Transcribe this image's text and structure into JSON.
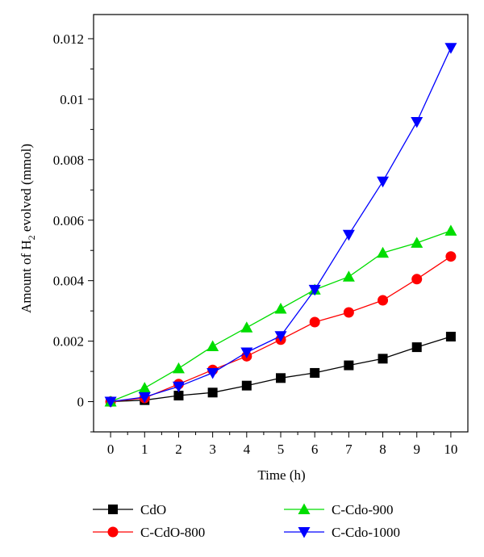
{
  "chart_data": {
    "type": "line",
    "xlabel": "Time (h)",
    "ylabel_prefix": "Amount of H",
    "ylabel_sub": "2",
    "ylabel_suffix": " evolved (mmol)",
    "xlim": [
      -0.5,
      10.5
    ],
    "ylim": [
      -0.001,
      0.0128
    ],
    "x": [
      0,
      1,
      2,
      3,
      4,
      5,
      6,
      7,
      8,
      9,
      10
    ],
    "xticks": [
      "0",
      "1",
      "2",
      "3",
      "4",
      "5",
      "6",
      "7",
      "8",
      "9",
      "10"
    ],
    "yticks": [
      {
        "value": 0,
        "label": "0"
      },
      {
        "value": 0.002,
        "label": "0.002"
      },
      {
        "value": 0.004,
        "label": "0.004"
      },
      {
        "value": 0.006,
        "label": "0.006"
      },
      {
        "value": 0.008,
        "label": "0.008"
      },
      {
        "value": 0.01,
        "label": "0.01"
      },
      {
        "value": 0.012,
        "label": "0.012"
      }
    ],
    "grid": false,
    "legend_position": "bottom",
    "series": [
      {
        "name": "CdO",
        "color": "#000000",
        "marker": "square",
        "values": [
          0,
          5e-05,
          0.0002,
          0.0003,
          0.00053,
          0.00078,
          0.00095,
          0.0012,
          0.00142,
          0.0018,
          0.00215
        ]
      },
      {
        "name": "C-CdO-800",
        "color": "#ff0000",
        "marker": "circle",
        "values": [
          0,
          0.00012,
          0.00058,
          0.00105,
          0.0015,
          0.00205,
          0.00263,
          0.00295,
          0.00335,
          0.00405,
          0.0048
        ]
      },
      {
        "name": "C-Cdo-900",
        "color": "#00dd00",
        "marker": "triangle-up",
        "values": [
          0,
          0.00045,
          0.0011,
          0.00183,
          0.00245,
          0.00307,
          0.0037,
          0.00413,
          0.00492,
          0.00525,
          0.00565
        ]
      },
      {
        "name": "C-Cdo-1000",
        "color": "#0000ff",
        "marker": "triangle-down",
        "values": [
          0,
          0.00015,
          0.0005,
          0.00095,
          0.00163,
          0.00217,
          0.0037,
          0.00552,
          0.00728,
          0.00925,
          0.0117
        ]
      }
    ]
  }
}
